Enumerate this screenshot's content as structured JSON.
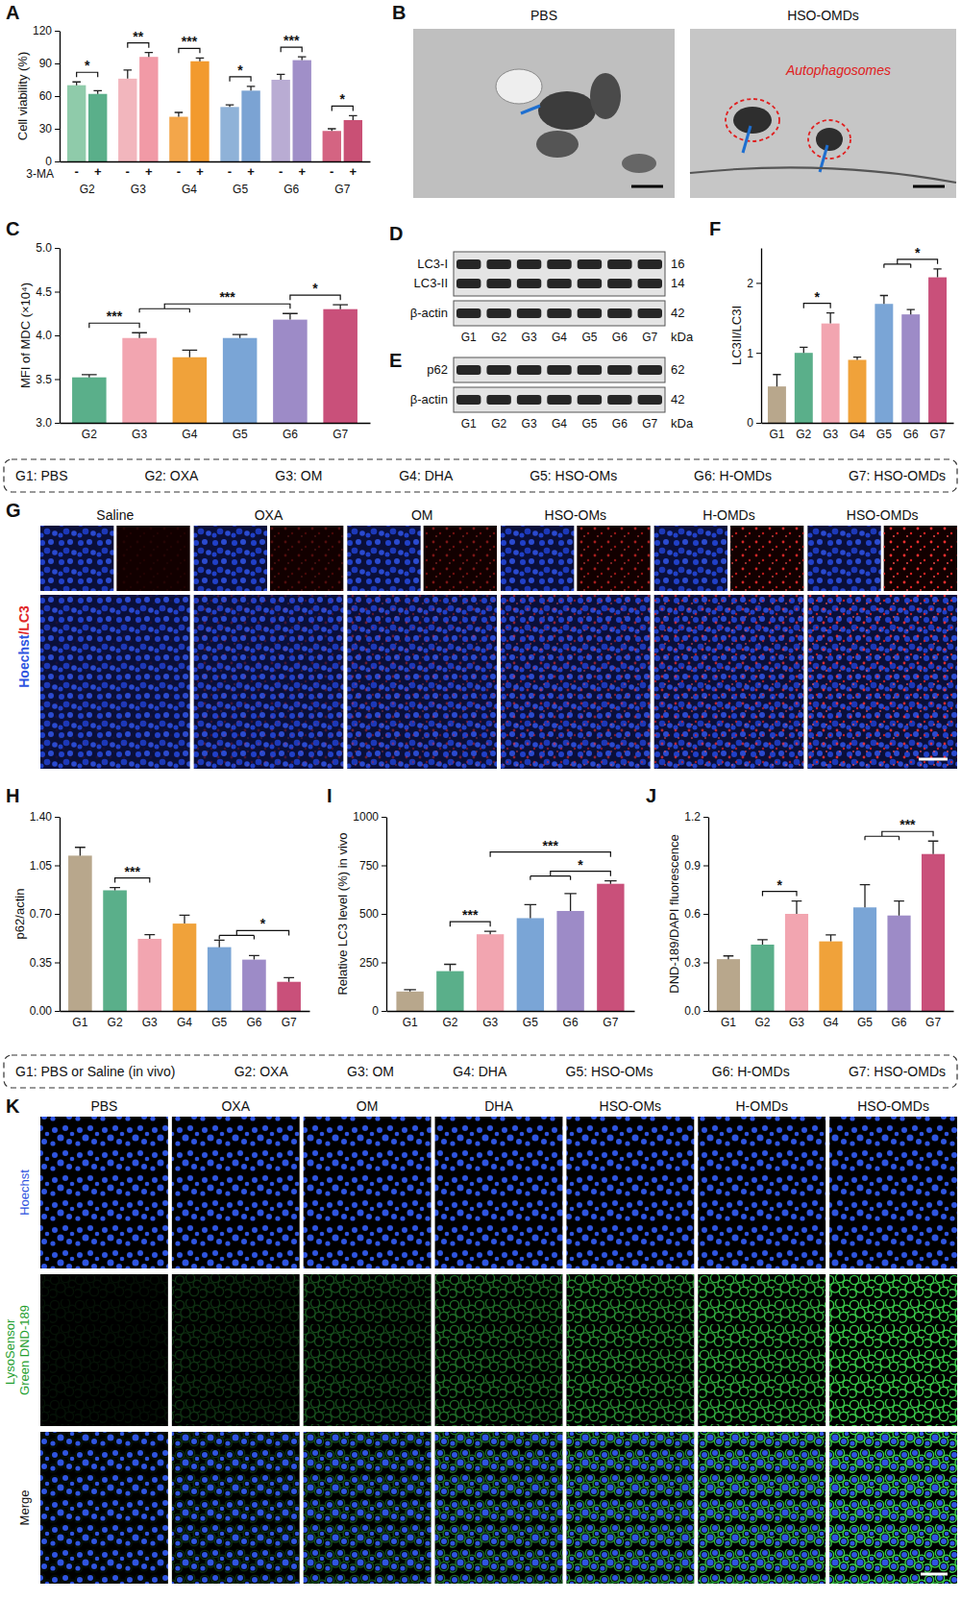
{
  "chart_data": [
    {
      "panel": "A",
      "type": "bar",
      "y_label": "Cell viability (%)",
      "x_label": "3-MA",
      "ylim": [
        0,
        120
      ],
      "yticks": [
        0,
        30,
        60,
        90,
        120
      ],
      "categories": [
        "G2",
        "G3",
        "G4",
        "G5",
        "G6",
        "G7"
      ],
      "series": [
        {
          "name": "-",
          "values": [
            70,
            76,
            41,
            50,
            75,
            28
          ],
          "errors": [
            3,
            8,
            4,
            2,
            5,
            2
          ],
          "colors": [
            "#8fcbaa",
            "#f2b6bd",
            "#f3a64a",
            "#8fb2d8",
            "#b9acd3",
            "#d46482"
          ]
        },
        {
          "name": "+",
          "values": [
            62,
            96,
            92,
            65,
            93,
            38
          ],
          "errors": [
            3,
            4,
            3,
            4,
            3,
            4
          ],
          "colors": [
            "#5aaf8a",
            "#f19aa6",
            "#f29a2e",
            "#7ba3d3",
            "#a08fc8",
            "#c95075"
          ]
        }
      ],
      "annotations": [
        {
          "text": "*",
          "left": [
            "G2"
          ],
          "right": [
            "G2"
          ]
        },
        {
          "text": "**",
          "left": [
            "G3"
          ],
          "right": [
            "G3"
          ]
        },
        {
          "text": "***",
          "left": [
            "G4"
          ],
          "right": [
            "G4"
          ]
        },
        {
          "text": "*",
          "left": [
            "G5"
          ],
          "right": [
            "G5"
          ]
        },
        {
          "text": "***",
          "left": [
            "G6"
          ],
          "right": [
            "G6"
          ]
        },
        {
          "text": "*",
          "left": [
            "G7"
          ],
          "right": [
            "G7"
          ]
        }
      ]
    },
    {
      "panel": "C",
      "type": "bar",
      "y_label": "MFI of MDC (×10⁴)",
      "ylim": [
        3,
        5
      ],
      "yticks": [
        {
          "value": 3,
          "label": "3.0"
        },
        3.5,
        {
          "value": 4,
          "label": "4.0"
        },
        4.5,
        {
          "value": 5,
          "label": "5.0"
        }
      ],
      "categories": [
        "G2",
        "G3",
        "G4",
        "G5",
        "G6",
        "G7"
      ],
      "values": [
        3.52,
        3.97,
        3.75,
        3.97,
        4.18,
        4.3
      ],
      "errors": [
        0.03,
        0.06,
        0.08,
        0.04,
        0.07,
        0.05
      ],
      "colors": [
        "#5aaf8a",
        "#f2a5b0",
        "#f0a23a",
        "#7aa5d6",
        "#9d8bc7",
        "#c9507a"
      ],
      "annotations": [
        {
          "text": "***",
          "left": [
            "G2"
          ],
          "right": [
            "G3"
          ]
        },
        {
          "text": "***",
          "left": [
            "G3",
            "G4"
          ],
          "right": [
            "G6"
          ]
        },
        {
          "text": "*",
          "left": [
            "G6"
          ],
          "right": [
            "G7"
          ]
        }
      ]
    },
    {
      "panel": "F",
      "type": "bar",
      "y_label": "LC3II/LC3I",
      "ylim": [
        0,
        2.5
      ],
      "yticks": [
        0,
        1,
        2
      ],
      "categories": [
        "G1",
        "G2",
        "G3",
        "G4",
        "G5",
        "G6",
        "G7"
      ],
      "values": [
        0.52,
        1.0,
        1.42,
        0.9,
        1.7,
        1.55,
        2.08
      ],
      "errors": [
        0.17,
        0.08,
        0.15,
        0.04,
        0.12,
        0.07,
        0.12
      ],
      "colors": [
        "#b8a78c",
        "#5aaf8a",
        "#f2a5b0",
        "#f0a23a",
        "#7aa5d6",
        "#9d8bc7",
        "#c9507a"
      ],
      "annotations": [
        {
          "text": "*",
          "left": [
            "G2"
          ],
          "right": [
            "G3"
          ]
        },
        {
          "text": "*",
          "left": [
            "G5",
            "G6"
          ],
          "right": [
            "G7"
          ]
        }
      ]
    },
    {
      "panel": "H",
      "type": "bar",
      "y_label": "p62/actin",
      "ylim": [
        0,
        1.4
      ],
      "yticks": [
        {
          "value": 0,
          "label": "0.00"
        },
        0.35,
        {
          "value": 0.7,
          "label": "0.70"
        },
        1.05,
        {
          "value": 1.4,
          "label": "1.40"
        }
      ],
      "categories": [
        "G1",
        "G2",
        "G3",
        "G4",
        "G5",
        "G6",
        "G7"
      ],
      "values": [
        1.12,
        0.87,
        0.52,
        0.63,
        0.46,
        0.37,
        0.21
      ],
      "errors": [
        0.06,
        0.02,
        0.03,
        0.06,
        0.05,
        0.03,
        0.03
      ],
      "colors": [
        "#b8a78c",
        "#5aaf8a",
        "#f2a5b0",
        "#f0a23a",
        "#7aa5d6",
        "#9d8bc7",
        "#c9507a"
      ],
      "annotations": [
        {
          "text": "***",
          "left": [
            "G2"
          ],
          "right": [
            "G3"
          ]
        },
        {
          "text": "*",
          "left": [
            "G5",
            "G6"
          ],
          "right": [
            "G7"
          ]
        }
      ]
    },
    {
      "panel": "I",
      "type": "bar",
      "y_label": "Relative LC3 level (%) in vivo",
      "ylim": [
        0,
        1000
      ],
      "yticks": [
        0,
        250,
        500,
        750,
        1000
      ],
      "categories": [
        "G1",
        "G2",
        "G3",
        "G5",
        "G6",
        "G7"
      ],
      "values": [
        100,
        205,
        395,
        478,
        515,
        655
      ],
      "errors": [
        10,
        35,
        15,
        70,
        90,
        15
      ],
      "colors": [
        "#b8a78c",
        "#5aaf8a",
        "#f2a5b0",
        "#7aa5d6",
        "#9d8bc7",
        "#c9507a"
      ],
      "annotations": [
        {
          "text": "***",
          "left": [
            "G2"
          ],
          "right": [
            "G3"
          ]
        },
        {
          "text": "*",
          "left": [
            "G5",
            "G6"
          ],
          "right": [
            "G7"
          ]
        },
        {
          "text": "***",
          "left": [
            "G3"
          ],
          "right": [
            "G7"
          ]
        }
      ]
    },
    {
      "panel": "J",
      "type": "bar",
      "y_label": "DND-189/DAPI fluorescence",
      "ylim": [
        0,
        1.2
      ],
      "yticks": [
        {
          "value": 0,
          "label": "0.0"
        },
        0.3,
        0.6,
        0.9,
        1.2
      ],
      "categories": [
        "G1",
        "G2",
        "G3",
        "G4",
        "G5",
        "G6",
        "G7"
      ],
      "values": [
        0.32,
        0.41,
        0.6,
        0.43,
        0.64,
        0.59,
        0.97
      ],
      "errors": [
        0.02,
        0.03,
        0.08,
        0.04,
        0.14,
        0.09,
        0.08
      ],
      "colors": [
        "#b8a78c",
        "#5aaf8a",
        "#f2a5b0",
        "#f0a23a",
        "#7aa5d6",
        "#9d8bc7",
        "#c9507a"
      ],
      "annotations": [
        {
          "text": "*",
          "left": [
            "G2"
          ],
          "right": [
            "G3"
          ]
        },
        {
          "text": "***",
          "left": [
            "G5",
            "G6"
          ],
          "right": [
            "G7"
          ]
        }
      ]
    }
  ],
  "micrographs": [
    {
      "panel": "B",
      "images": [
        {
          "title": "PBS"
        },
        {
          "title": "HSO-OMDs",
          "annotation": "Autophagosomes"
        }
      ]
    },
    {
      "panel": "G",
      "row_label": [
        {
          "text": "Hoechst",
          "color": "#2f55e0"
        },
        {
          "text": "/LC3",
          "color": "#e02828"
        }
      ],
      "columns": [
        "Saline",
        "OXA",
        "OM",
        "HSO-OMs",
        "H-OMDs",
        "HSO-OMDs"
      ]
    },
    {
      "panel": "K",
      "rows": [
        {
          "label": "Hoechst",
          "color": "#2f55e0"
        },
        {
          "label": "LysoSensor Green DND-189",
          "color": "#1fa030"
        },
        {
          "label": "Merge",
          "color": "#111111"
        }
      ],
      "columns": [
        "PBS",
        "OXA",
        "OM",
        "DHA",
        "HSO-OMs",
        "H-OMDs",
        "HSO-OMDs"
      ]
    }
  ],
  "blots": [
    {
      "panel": "D",
      "strips": [
        [
          {
            "label": "LC3-I",
            "kda": 16
          },
          {
            "label": "LC3-II",
            "kda": 14
          }
        ],
        [
          {
            "label": "β-actin",
            "kda": 42
          }
        ]
      ],
      "lanes": [
        "G1",
        "G2",
        "G3",
        "G4",
        "G5",
        "G6",
        "G7"
      ],
      "unit": "kDa"
    },
    {
      "panel": "E",
      "strips": [
        [
          {
            "label": "p62",
            "kda": 62
          }
        ],
        [
          {
            "label": "β-actin",
            "kda": 42
          }
        ]
      ],
      "lanes": [
        "G1",
        "G2",
        "G3",
        "G4",
        "G5",
        "G6",
        "G7"
      ],
      "unit": "kDa"
    }
  ],
  "group_keys": [
    [
      "G1: PBS",
      "G2: OXA",
      "G3: OM",
      "G4: DHA",
      "G5: HSO-OMs",
      "G6: H-OMDs",
      "G7: HSO-OMDs"
    ],
    [
      "G1: PBS or Saline (in vivo)",
      "G2: OXA",
      "G3: OM",
      "G4: DHA",
      "G5: HSO-OMs",
      "G6: H-OMDs",
      "G7: HSO-OMDs"
    ]
  ]
}
